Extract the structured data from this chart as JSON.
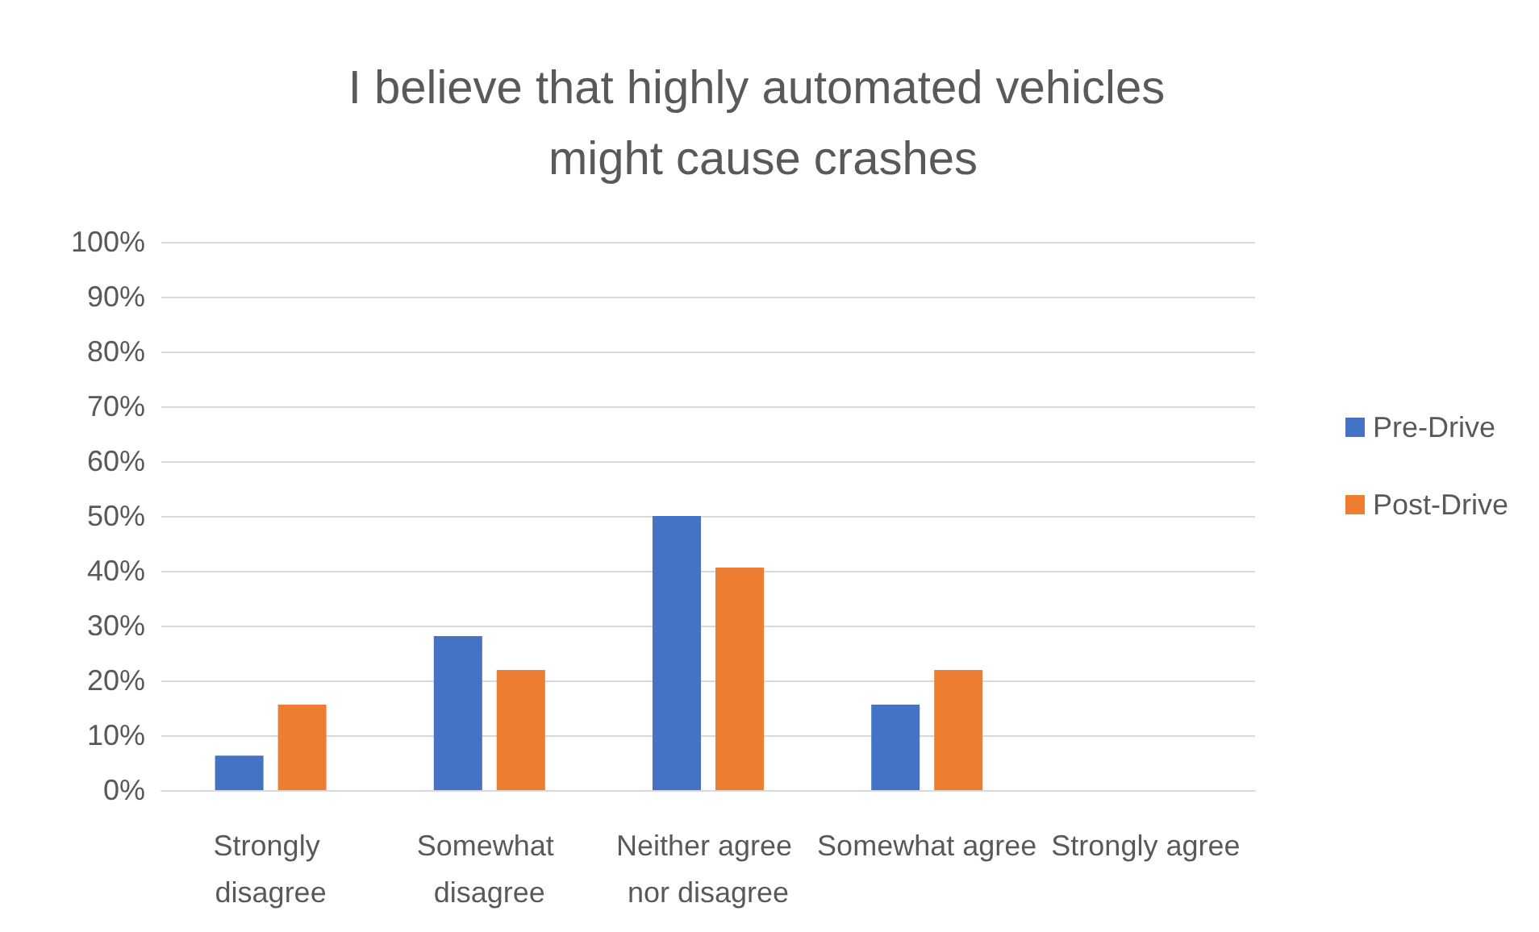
{
  "chart_data": {
    "type": "bar",
    "title": "I believe that highly automated vehicles might cause crashes",
    "categories": [
      "Strongly disagree",
      "Somewhat disagree",
      "Neither agree nor disagree",
      "Somewhat agree",
      "Strongly agree"
    ],
    "series": [
      {
        "name": "Pre-Drive",
        "color": "#4472c4",
        "values": [
          6.3,
          28.1,
          50,
          15.6,
          0
        ]
      },
      {
        "name": "Post-Drive",
        "color": "#ed7d31",
        "values": [
          15.6,
          21.9,
          40.6,
          21.9,
          0
        ]
      }
    ],
    "ylim": [
      0,
      100
    ],
    "yticks": [
      {
        "value": 0,
        "label": "0%"
      },
      {
        "value": 10,
        "label": "10%"
      },
      {
        "value": 20,
        "label": "20%"
      },
      {
        "value": 30,
        "label": "30%"
      },
      {
        "value": 40,
        "label": "40%"
      },
      {
        "value": 50,
        "label": "50%"
      },
      {
        "value": 60,
        "label": "60%"
      },
      {
        "value": 70,
        "label": "70%"
      },
      {
        "value": 80,
        "label": "80%"
      },
      {
        "value": 90,
        "label": "90%"
      },
      {
        "value": 100,
        "label": "100%"
      }
    ],
    "grid": "y",
    "legend": "right"
  }
}
